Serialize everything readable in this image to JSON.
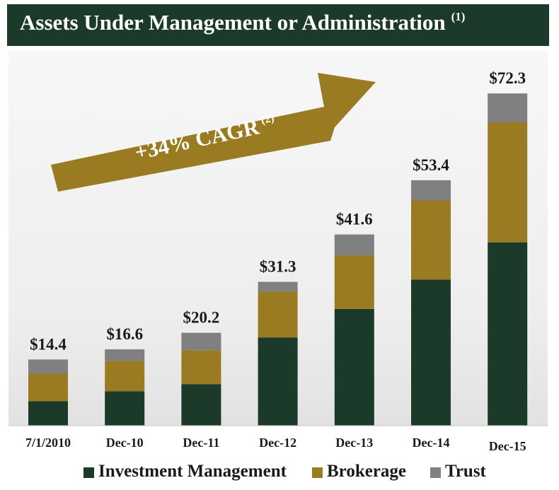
{
  "title": {
    "main": "Assets Under Management or Administration",
    "footnote": "(1)"
  },
  "cagr": {
    "label": "+34% CAGR",
    "footnote": "(2)"
  },
  "colors": {
    "investment_management": "#1b3a2a",
    "brokerage": "#9a7b22",
    "trust": "#808080",
    "arrow": "#9a7b22",
    "title_bar": "#1b3a2a"
  },
  "chart_data": {
    "type": "bar",
    "stacked": true,
    "title": "Assets Under Management or Administration",
    "categories": [
      "7/1/2010",
      "Dec-10",
      "Dec-11",
      "Dec-12",
      "Dec-13",
      "Dec-14",
      "Dec-15"
    ],
    "totals": [
      14.4,
      16.6,
      20.2,
      31.3,
      41.6,
      53.4,
      72.3
    ],
    "total_labels": [
      "$14.4",
      "$16.6",
      "$20.2",
      "$31.3",
      "$41.6",
      "$53.4",
      "$72.3"
    ],
    "series": [
      {
        "name": "Investment Management",
        "values": [
          5.3,
          7.5,
          9.0,
          19.2,
          25.4,
          31.8,
          39.9
        ]
      },
      {
        "name": "Brokerage",
        "values": [
          6.0,
          6.6,
          7.4,
          10.0,
          11.7,
          17.2,
          26.1
        ]
      },
      {
        "name": "Trust",
        "values": [
          3.1,
          2.5,
          3.8,
          2.1,
          4.5,
          4.4,
          6.3
        ]
      }
    ],
    "ylim": [
      0,
      78
    ],
    "grid": false,
    "legend_position": "bottom",
    "xlabel": "",
    "ylabel": ""
  }
}
